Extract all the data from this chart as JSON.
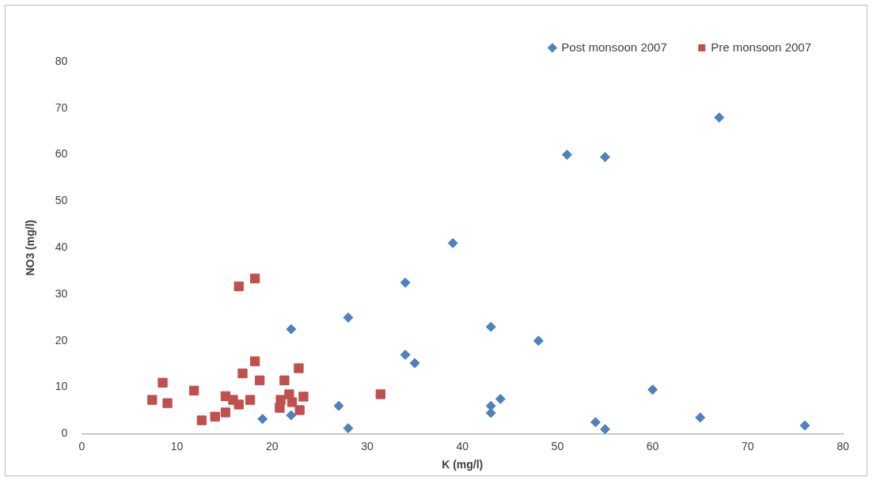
{
  "chart_data": {
    "type": "scatter",
    "xlabel": "K (mg/l)",
    "ylabel": "NO3 (mg/l)",
    "xlim": [
      0,
      80
    ],
    "ylim": [
      0,
      80
    ],
    "xticks": [
      0,
      10,
      20,
      30,
      40,
      50,
      60,
      70,
      80
    ],
    "yticks": [
      0,
      10,
      20,
      30,
      40,
      50,
      60,
      70,
      80
    ],
    "grid": false,
    "legend": "top right",
    "series": [
      {
        "name": "Post monsoon 2007",
        "color": "#4f81bd",
        "marker": "diamond",
        "x": [
          19,
          22,
          22,
          27,
          28,
          28,
          34,
          34,
          35,
          39,
          43,
          43,
          43,
          44,
          48,
          51,
          55,
          54,
          55,
          60,
          65,
          67,
          76
        ],
        "values": [
          3.2,
          22.5,
          4,
          6,
          25,
          1.2,
          32.5,
          17,
          15.2,
          41,
          23,
          6,
          4.5,
          7.5,
          20,
          60,
          59.5,
          2.5,
          1,
          9.5,
          3.5,
          68,
          1.8
        ]
      },
      {
        "name": "Pre monsoon 2007",
        "color": "#c0504d",
        "marker": "square",
        "x": [
          16.5,
          18.2,
          8.5,
          7.4,
          9.0,
          11.8,
          12.6,
          14.0,
          15.1,
          15.1,
          15.9,
          16.5,
          16.9,
          17.7,
          18.2,
          18.7,
          21.3,
          22.8,
          20.8,
          20.9,
          22.1,
          22.9,
          23.3,
          21.8,
          31.4
        ],
        "values": [
          31.7,
          33.4,
          11,
          7.3,
          6.6,
          9.3,
          2.9,
          3.7,
          4.6,
          8.1,
          7.3,
          6.3,
          13,
          7.3,
          15.6,
          11.5,
          11.5,
          14.1,
          5.6,
          7.3,
          6.8,
          5.1,
          8,
          8.5,
          8.5
        ]
      }
    ]
  }
}
